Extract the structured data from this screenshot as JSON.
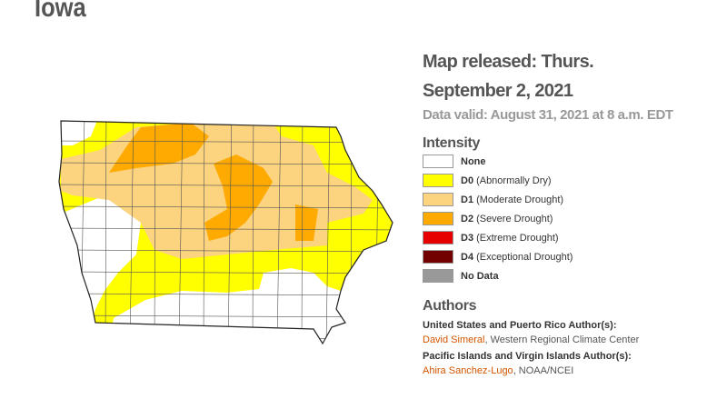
{
  "title": "Iowa",
  "release": {
    "released": "Map released: Thurs. September 2, 2021",
    "valid": "Data valid: August 31, 2021 at 8 a.m. EDT"
  },
  "intensity": {
    "heading": "Intensity",
    "items": [
      {
        "code": "None",
        "color": "#ffffff"
      },
      {
        "code": "D0",
        "label": "(Abnormally Dry)",
        "color": "#ffff00"
      },
      {
        "code": "D1",
        "label": "(Moderate Drought)",
        "color": "#fcd37f"
      },
      {
        "code": "D2",
        "label": "(Severe Drought)",
        "color": "#ffaa00"
      },
      {
        "code": "D3",
        "label": "(Extreme Drought)",
        "color": "#e60000"
      },
      {
        "code": "D4",
        "label": "(Exceptional Drought)",
        "color": "#730000"
      },
      {
        "code": "No Data",
        "color": "#999999"
      }
    ]
  },
  "authors": {
    "heading": "Authors",
    "groups": [
      {
        "role": "United States and Puerto Rico Author(s):",
        "name": "David Simeral",
        "affiliation": ", Western Regional Climate Center"
      },
      {
        "role": "Pacific Islands and Virgin Islands Author(s):",
        "name": "Ahira Sanchez-Lugo",
        "affiliation": ", NOAA/NCEI"
      }
    ]
  }
}
